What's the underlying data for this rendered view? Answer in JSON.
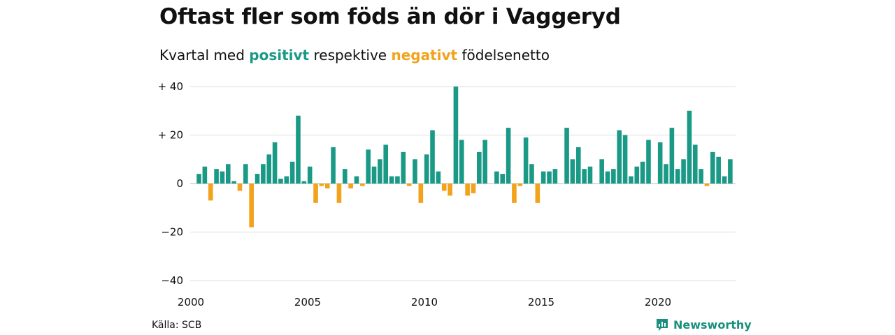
{
  "title": "Oftast fler som föds än dör i Vaggeryd",
  "subtitle": {
    "prefix": "Kvartal med ",
    "positive_word": "positivt",
    "middle": " respektive ",
    "negative_word": "negativt",
    "suffix": " födelsenetto"
  },
  "source": "Källa: SCB",
  "brand": "Newsworthy",
  "colors": {
    "positive": "#1a9a86",
    "negative": "#f2a21b",
    "grid": "#dddddd",
    "brand": "#1a8f7d"
  },
  "chart_data": {
    "type": "bar",
    "x_start": "2000 Q1",
    "frequency": "quarterly",
    "ylim": [
      -40,
      40
    ],
    "yticks": [
      {
        "value": 40,
        "label": "+ 40"
      },
      {
        "value": 20,
        "label": "+ 20"
      },
      {
        "value": 0,
        "label": "0"
      },
      {
        "value": -20,
        "label": "−20"
      },
      {
        "value": -40,
        "label": "−40"
      }
    ],
    "xticks": [
      {
        "quarter_index": 0,
        "label": "2000"
      },
      {
        "quarter_index": 20,
        "label": "2005"
      },
      {
        "quarter_index": 40,
        "label": "2010"
      },
      {
        "quarter_index": 60,
        "label": "2015"
      },
      {
        "quarter_index": 80,
        "label": "2020"
      }
    ],
    "values": [
      0,
      4,
      7,
      -7,
      6,
      5,
      8,
      1,
      -3,
      8,
      -18,
      4,
      8,
      12,
      17,
      2,
      3,
      9,
      28,
      1,
      7,
      -8,
      -1,
      -2,
      15,
      -8,
      6,
      -2,
      3,
      -1,
      14,
      7,
      10,
      16,
      3,
      3,
      13,
      -1,
      10,
      -8,
      12,
      22,
      5,
      -3,
      -5,
      40,
      18,
      -5,
      -4,
      13,
      18,
      0,
      5,
      4,
      23,
      -8,
      -1,
      19,
      8,
      -8,
      5,
      5,
      6,
      0,
      23,
      10,
      15,
      6,
      7,
      0,
      10,
      5,
      6,
      22,
      20,
      3,
      7,
      9,
      18,
      0,
      17,
      8,
      23,
      6,
      10,
      30,
      16,
      6,
      -1,
      13,
      11,
      3,
      10
    ]
  }
}
